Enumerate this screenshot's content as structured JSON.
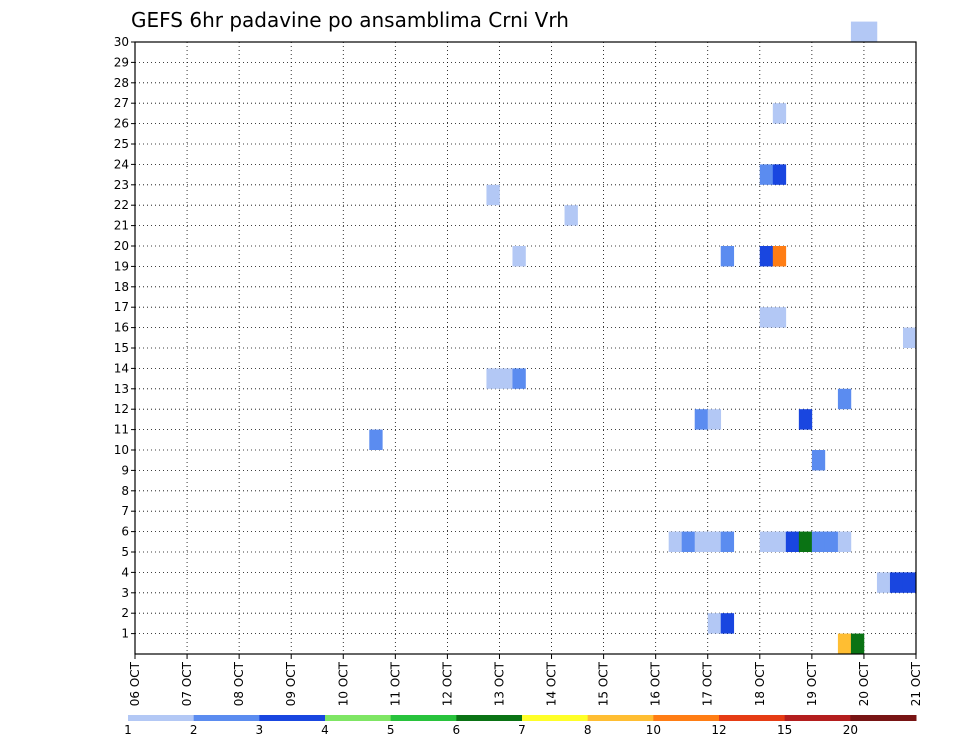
{
  "chart_data": {
    "type": "heatmap",
    "title": "GEFS 6hr padavine po ansamblima Crni Vrh",
    "x_ticks": [
      "06 OCT",
      "07 OCT",
      "08 OCT",
      "09 OCT",
      "10 OCT",
      "11 OCT",
      "12 OCT",
      "13 OCT",
      "14 OCT",
      "15 OCT",
      "16 OCT",
      "17 OCT",
      "18 OCT",
      "19 OCT",
      "20 OCT",
      "21 OCT"
    ],
    "x_range": [
      "06 OCT 00Z",
      "21 OCT 00Z"
    ],
    "x_step_hours": 6,
    "y_ticks": [
      1,
      2,
      3,
      4,
      5,
      6,
      7,
      8,
      9,
      10,
      11,
      12,
      13,
      14,
      15,
      16,
      17,
      18,
      19,
      20,
      21,
      22,
      23,
      24,
      25,
      26,
      27,
      28,
      29,
      30
    ],
    "y_range": [
      0,
      30
    ],
    "grid": "dotted",
    "colorbar": {
      "position": "bottom",
      "labels": [
        "1",
        "2",
        "3",
        "4",
        "5",
        "6",
        "7",
        "8",
        "10",
        "12",
        "15",
        "20"
      ],
      "colors": [
        "#b3c8f5",
        "#5b8cf0",
        "#1946e0",
        "#7fe664",
        "#28c33c",
        "#0a7314",
        "#ffff28",
        "#ffbe32",
        "#ff7d14",
        "#e63c14",
        "#b41e1e",
        "#781414"
      ]
    },
    "cells": [
      {
        "x": "17.0",
        "y": 1,
        "v": 1
      },
      {
        "x": "17.25",
        "y": 1,
        "v": 3
      },
      {
        "x": "19.5",
        "y": 0,
        "v": 8
      },
      {
        "x": "19.75",
        "y": 0,
        "v": 6
      },
      {
        "x": "20.25",
        "y": 3,
        "v": 1
      },
      {
        "x": "20.5",
        "y": 3,
        "v": 3
      },
      {
        "x": "20.75",
        "y": 3,
        "v": 3
      },
      {
        "x": "16.25",
        "y": 5,
        "v": 1
      },
      {
        "x": "16.5",
        "y": 5,
        "v": 2
      },
      {
        "x": "16.75",
        "y": 5,
        "v": 1
      },
      {
        "x": "17.0",
        "y": 5,
        "v": 1
      },
      {
        "x": "17.25",
        "y": 5,
        "v": 2
      },
      {
        "x": "18.0",
        "y": 5,
        "v": 1
      },
      {
        "x": "18.25",
        "y": 5,
        "v": 1
      },
      {
        "x": "18.5",
        "y": 5,
        "v": 3
      },
      {
        "x": "18.75",
        "y": 5,
        "v": 6
      },
      {
        "x": "19.0",
        "y": 5,
        "v": 2
      },
      {
        "x": "19.25",
        "y": 5,
        "v": 2
      },
      {
        "x": "19.5",
        "y": 5,
        "v": 1
      },
      {
        "x": "19.0",
        "y": 9,
        "v": 2
      },
      {
        "x": "10.5",
        "y": 10,
        "v": 2
      },
      {
        "x": "16.75",
        "y": 11,
        "v": 2
      },
      {
        "x": "17.0",
        "y": 11,
        "v": 1
      },
      {
        "x": "18.75",
        "y": 11,
        "v": 3
      },
      {
        "x": "19.5",
        "y": 12,
        "v": 2
      },
      {
        "x": "12.75",
        "y": 13,
        "v": 1
      },
      {
        "x": "13.0",
        "y": 13,
        "v": 1
      },
      {
        "x": "13.25",
        "y": 13,
        "v": 2
      },
      {
        "x": "20.75",
        "y": 15,
        "v": 1
      },
      {
        "x": "18.0",
        "y": 16,
        "v": 1
      },
      {
        "x": "18.25",
        "y": 16,
        "v": 1
      },
      {
        "x": "13.25",
        "y": 19,
        "v": 1
      },
      {
        "x": "17.25",
        "y": 19,
        "v": 2
      },
      {
        "x": "18.0",
        "y": 19,
        "v": 3
      },
      {
        "x": "18.25",
        "y": 19,
        "v": 10
      },
      {
        "x": "14.25",
        "y": 21,
        "v": 1
      },
      {
        "x": "12.75",
        "y": 22,
        "v": 1
      },
      {
        "x": "18.0",
        "y": 23,
        "v": 2
      },
      {
        "x": "18.25",
        "y": 23,
        "v": 3
      },
      {
        "x": "18.25",
        "y": 26,
        "v": 1
      },
      {
        "x": "19.75",
        "y": 30,
        "v": 1
      },
      {
        "x": "20.0",
        "y": 30,
        "v": 1
      }
    ]
  }
}
